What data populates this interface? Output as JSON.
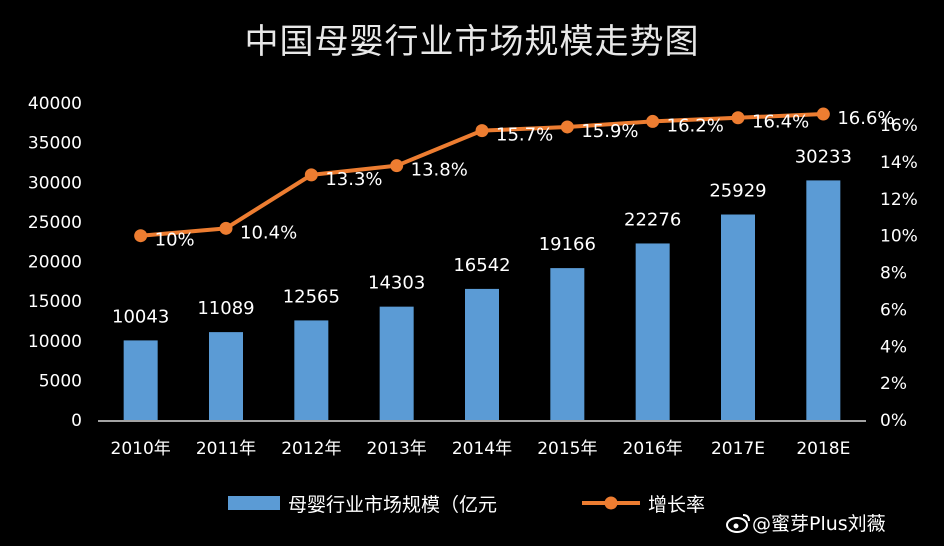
{
  "chart_data": {
    "type": "bar+line",
    "title": "中国母婴行业市场规模走势图",
    "categories": [
      "2010年",
      "2011年",
      "2012年",
      "2013年",
      "2014年",
      "2015年",
      "2016年",
      "2017E",
      "2018E"
    ],
    "series": [
      {
        "name": "母婴行业市场规模（亿元",
        "type": "bar",
        "axis": "left",
        "color": "#5b9bd5",
        "values": [
          10043,
          11089,
          12565,
          14303,
          16542,
          19166,
          22276,
          25929,
          30233
        ],
        "labels": [
          "10043",
          "11089",
          "12565",
          "14303",
          "16542",
          "19166",
          "22276",
          "25929",
          "30233"
        ]
      },
      {
        "name": "增长率",
        "type": "line",
        "axis": "right",
        "color": "#ed7d31",
        "values": [
          10.0,
          10.4,
          13.3,
          13.8,
          15.7,
          15.9,
          16.2,
          16.4,
          16.6
        ],
        "labels": [
          "10%",
          "10.4%",
          "13.3%",
          "13.8%",
          "15.7%",
          "15.9%",
          "16.2%",
          "16.4%",
          "16.6%"
        ]
      }
    ],
    "y_left": {
      "ylim": [
        0,
        40000
      ],
      "ticks": [
        "0",
        "5000",
        "10000",
        "15000",
        "20000",
        "25000",
        "30000",
        "35000",
        "40000"
      ]
    },
    "y_right": {
      "ylim": [
        0,
        17.2
      ],
      "ticks": [
        "0%",
        "2%",
        "4%",
        "6%",
        "8%",
        "10%",
        "12%",
        "14%",
        "16%"
      ]
    },
    "legend_position": "bottom",
    "grid": false
  },
  "watermark": "@蜜芽Plus刘薇"
}
